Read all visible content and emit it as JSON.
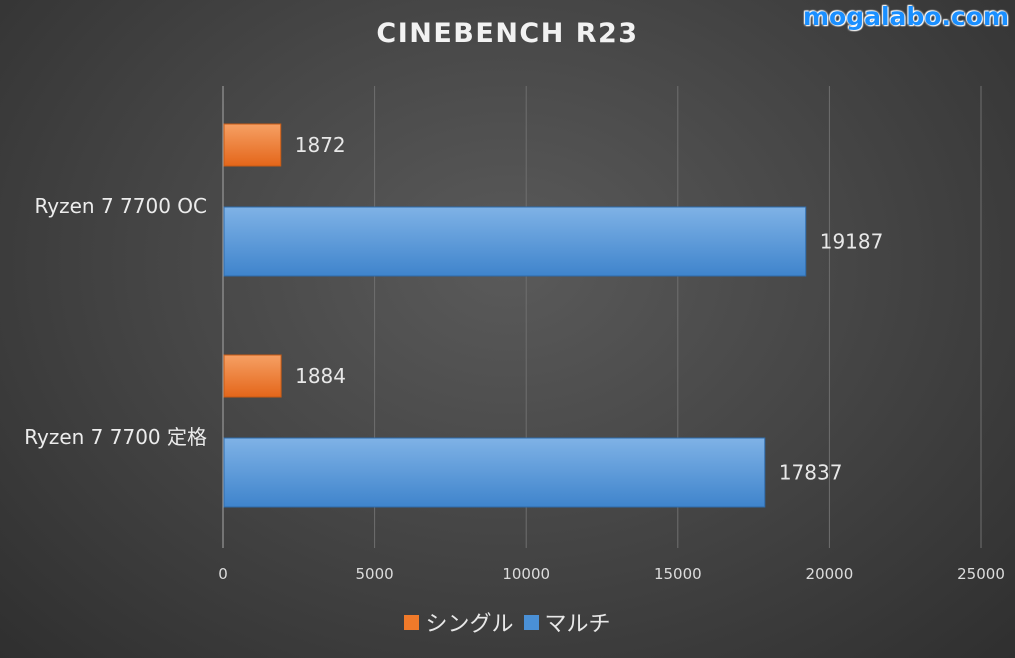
{
  "watermark": "mogalabo.com",
  "chart_data": {
    "type": "bar",
    "orientation": "horizontal",
    "title": "CINEBENCH R23",
    "categories": [
      "Ryzen 7 7700 OC",
      "Ryzen 7 7700 定格"
    ],
    "series": [
      {
        "name": "シングル",
        "values": [
          1872,
          1884
        ],
        "color": "#f07a2a"
      },
      {
        "name": "マルチ",
        "values": [
          19187,
          17837
        ],
        "color": "#4a90d6"
      }
    ],
    "xlim": [
      0,
      25000
    ],
    "xticks": [
      0,
      5000,
      10000,
      15000,
      20000,
      25000
    ],
    "grid": true,
    "legend_position": "bottom"
  }
}
